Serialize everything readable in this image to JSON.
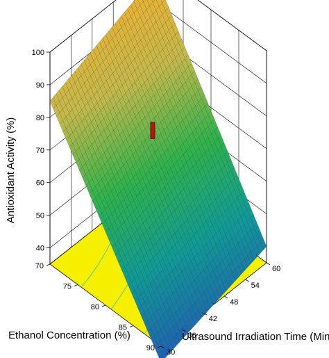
{
  "chart_data": {
    "type": "surface3d",
    "zlabel": "Antioxidant Activity (%)",
    "xlabel": "Ethanol Concentration (%)",
    "ylabel": "Ultrasound Irradiation Time  (Min)",
    "z_ticks": [
      "40",
      "50",
      "60",
      "70",
      "80",
      "90",
      "100"
    ],
    "x_ticks": [
      "70",
      "75",
      "80",
      "85",
      "90"
    ],
    "y_ticks": [
      "30",
      "36",
      "42",
      "48",
      "54",
      "60"
    ],
    "x_range": [
      70,
      90
    ],
    "y_range": [
      30,
      60
    ],
    "z_range": [
      35,
      100
    ],
    "surface_corners": [
      {
        "ethanol": 70,
        "time": 30,
        "activity": 85
      },
      {
        "ethanol": 70,
        "time": 60,
        "activity": 98
      },
      {
        "ethanol": 90,
        "time": 60,
        "activity": 40
      },
      {
        "ethanol": 90,
        "time": 30,
        "activity": 30
      }
    ],
    "design_point": {
      "ethanol": 79,
      "time": 45,
      "activity": 74
    },
    "colormap": [
      "#1f5fb4",
      "#0f9a9a",
      "#2fb34a",
      "#c4b84a",
      "#f0b030"
    ],
    "floor_color": "#f4f000",
    "grid": true
  }
}
